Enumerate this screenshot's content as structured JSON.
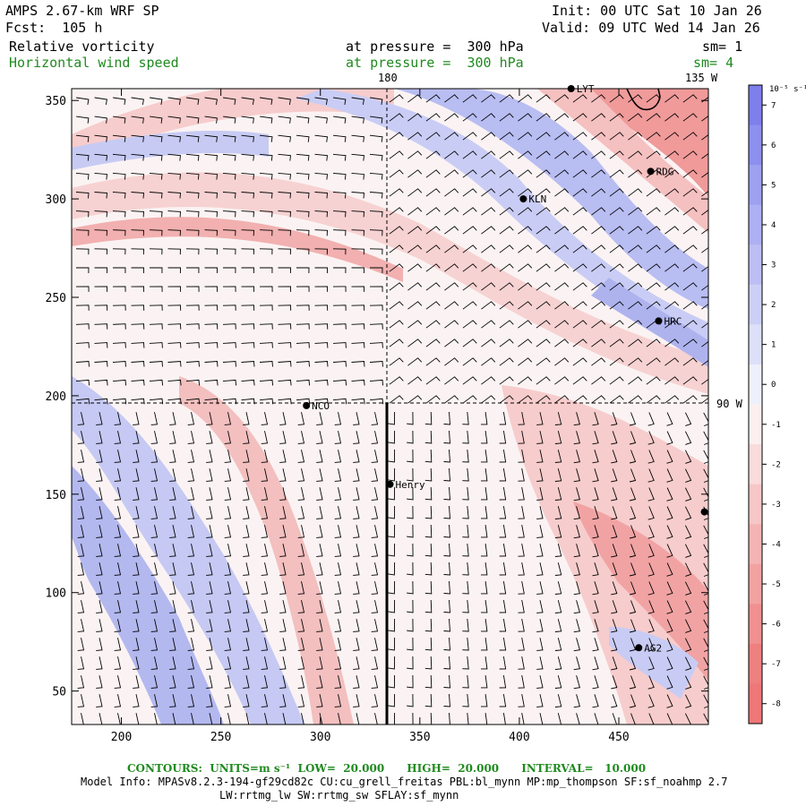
{
  "header": {
    "model": "AMPS 2.67-km WRF SP",
    "init": "Init: 00 UTC Sat 10 Jan 26",
    "fcst": "Fcst:  105 h",
    "valid": "Valid: 09 UTC Wed 14 Jan 26",
    "field1_name": "Relative vorticity",
    "field1_level": "at pressure =  300 hPa",
    "field1_sm": "sm= 1",
    "field2_name": "Horizontal wind speed",
    "field2_level": "at pressure =  300 hPa",
    "field2_sm": "sm= 4"
  },
  "map": {
    "lon_labels": {
      "lon_180": "180",
      "lon_135w": "135 W",
      "lon_90w": "90 W"
    },
    "x_axis": {
      "min": 175,
      "max": 495,
      "ticks": [
        "200",
        "250",
        "300",
        "350",
        "400",
        "450"
      ],
      "tick_values": [
        200,
        250,
        300,
        350,
        400,
        450
      ]
    },
    "y_axis": {
      "min": 33,
      "max": 356,
      "ticks": [
        "50",
        "100",
        "150",
        "200",
        "250",
        "300",
        "350"
      ],
      "tick_values": [
        50,
        100,
        150,
        200,
        250,
        300,
        350
      ]
    },
    "stations": [
      {
        "name": "RDG",
        "x": 466,
        "y": 314
      },
      {
        "name": "KLN",
        "x": 402,
        "y": 300
      },
      {
        "name": "HRC",
        "x": 470,
        "y": 238
      },
      {
        "name": "NCO",
        "x": 293,
        "y": 195
      },
      {
        "name": "Henry",
        "x": 335,
        "y": 155
      },
      {
        "name": "AG2",
        "x": 460,
        "y": 72
      },
      {
        "name": "",
        "x": 493,
        "y": 141
      },
      {
        "name": "LYT",
        "x": 426,
        "y": 356
      }
    ],
    "colors": {
      "positive": "#7f7fec",
      "negative": "#ef7777",
      "neutral": "#ffffff"
    }
  },
  "colorbar": {
    "units_label": "10⁻⁵ s⁻¹",
    "labels": [
      "7",
      "6",
      "5",
      "4",
      "3",
      "2",
      "1",
      "0",
      "-1",
      "-2",
      "-3",
      "-4",
      "-5",
      "-6",
      "-7",
      "-8"
    ]
  },
  "footer": {
    "contours": "CONTOURS:  UNITS=m s⁻¹  LOW=  20.000      HIGH=  20.000      INTERVAL=   10.000",
    "model_info": "Model Info: MPASv8.2.3-194-gf29cd82c CU:cu_grell_freitas PBL:bl_mynn MP:mp_thompson SF:sf_noahmp 2.7",
    "model_info2": "LW:rrtmg_lw SW:rrtmg_sw SFLAY:sf_mynn"
  }
}
